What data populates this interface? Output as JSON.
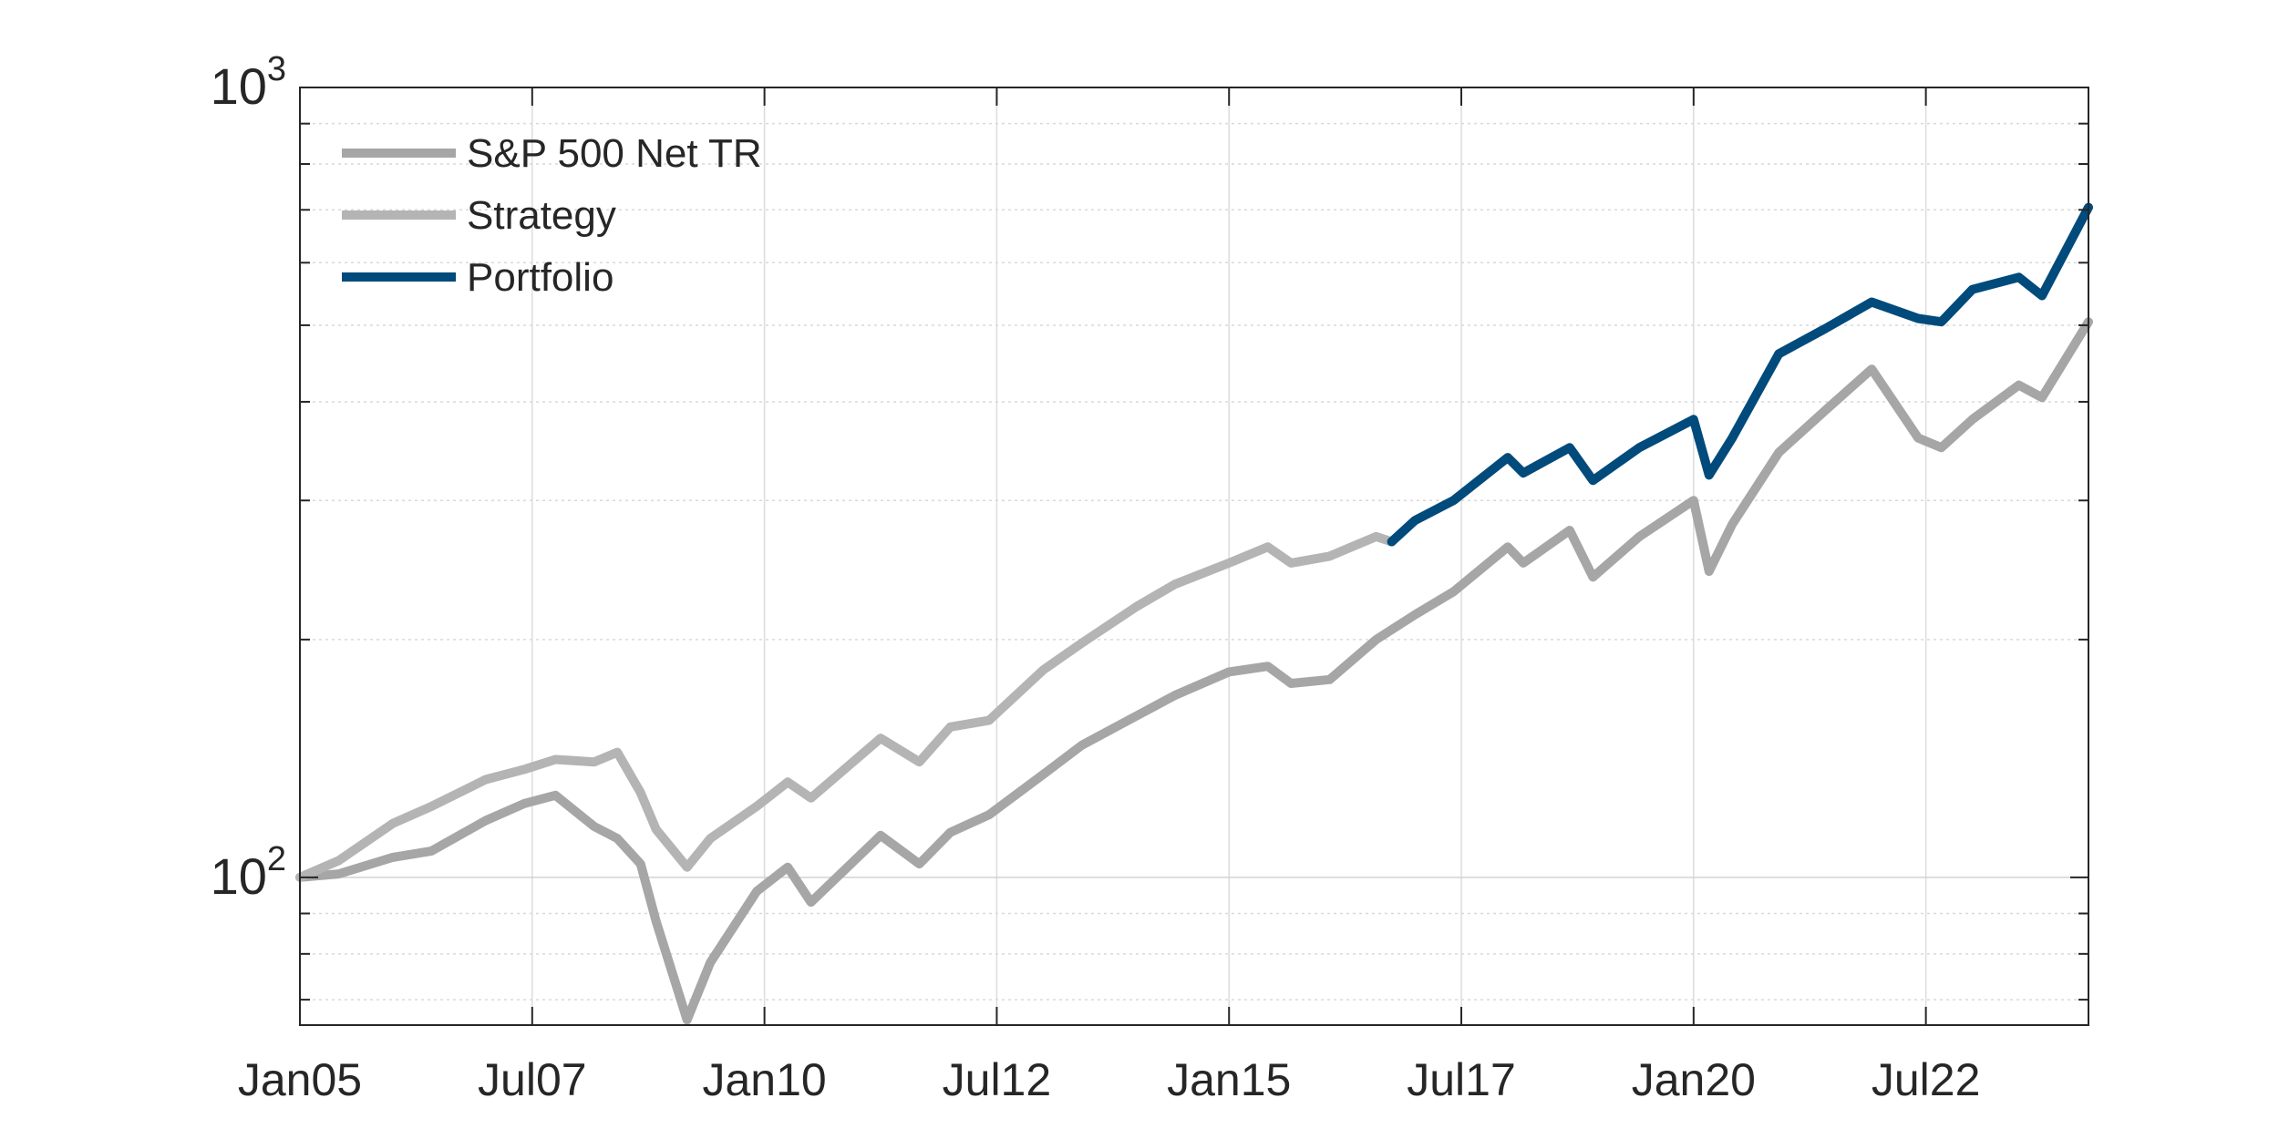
{
  "chart_data": {
    "type": "line",
    "yscale": "log",
    "ylim": [
      65,
      1000
    ],
    "xlim": [
      "2005-01",
      "2024-04"
    ],
    "grid": true,
    "legend_position": "top-left",
    "x_ticks": [
      "Jan05",
      "Jul07",
      "Jan10",
      "Jul12",
      "Jan15",
      "Jul17",
      "Jan20",
      "Jul22"
    ],
    "x_tick_dates": [
      "2005-01",
      "2007-07",
      "2010-01",
      "2012-07",
      "2015-01",
      "2017-07",
      "2020-01",
      "2022-07"
    ],
    "y_ticks": [
      {
        "value": 100,
        "base": "10",
        "exp": "2"
      },
      {
        "value": 1000,
        "base": "10",
        "exp": "3"
      }
    ],
    "series": [
      {
        "name": "S&P 500 Net TR",
        "color": "#a6a6a6",
        "points": [
          [
            "2005-01",
            100
          ],
          [
            "2005-06",
            101
          ],
          [
            "2006-01",
            106
          ],
          [
            "2006-06",
            108
          ],
          [
            "2007-01",
            118
          ],
          [
            "2007-06",
            124
          ],
          [
            "2007-10",
            127
          ],
          [
            "2008-03",
            116
          ],
          [
            "2008-06",
            112
          ],
          [
            "2008-09",
            104
          ],
          [
            "2008-11",
            88
          ],
          [
            "2009-03",
            66
          ],
          [
            "2009-06",
            78
          ],
          [
            "2009-12",
            96
          ],
          [
            "2010-04",
            103
          ],
          [
            "2010-07",
            93
          ],
          [
            "2011-04",
            113
          ],
          [
            "2011-09",
            104
          ],
          [
            "2012-01",
            114
          ],
          [
            "2012-06",
            120
          ],
          [
            "2013-01",
            135
          ],
          [
            "2013-06",
            147
          ],
          [
            "2014-01",
            160
          ],
          [
            "2014-06",
            170
          ],
          [
            "2015-01",
            182
          ],
          [
            "2015-06",
            185
          ],
          [
            "2015-09",
            176
          ],
          [
            "2016-02",
            178
          ],
          [
            "2016-08",
            200
          ],
          [
            "2017-01",
            215
          ],
          [
            "2017-06",
            230
          ],
          [
            "2018-01",
            262
          ],
          [
            "2018-03",
            250
          ],
          [
            "2018-09",
            275
          ],
          [
            "2018-12",
            240
          ],
          [
            "2019-06",
            270
          ],
          [
            "2020-01",
            300
          ],
          [
            "2020-03",
            244
          ],
          [
            "2020-06",
            280
          ],
          [
            "2020-12",
            345
          ],
          [
            "2021-06",
            390
          ],
          [
            "2021-12",
            440
          ],
          [
            "2022-06",
            360
          ],
          [
            "2022-09",
            350
          ],
          [
            "2023-01",
            380
          ],
          [
            "2023-07",
            420
          ],
          [
            "2023-10",
            405
          ],
          [
            "2024-04",
            505
          ]
        ]
      },
      {
        "name": "Strategy",
        "color": "#b4b4b4",
        "points": [
          [
            "2005-01",
            100
          ],
          [
            "2005-06",
            105
          ],
          [
            "2006-01",
            117
          ],
          [
            "2006-06",
            123
          ],
          [
            "2007-01",
            133
          ],
          [
            "2007-06",
            137
          ],
          [
            "2007-10",
            141
          ],
          [
            "2008-03",
            140
          ],
          [
            "2008-06",
            144
          ],
          [
            "2008-09",
            128
          ],
          [
            "2008-11",
            115
          ],
          [
            "2009-03",
            103
          ],
          [
            "2009-06",
            112
          ],
          [
            "2009-12",
            123
          ],
          [
            "2010-04",
            132
          ],
          [
            "2010-07",
            126
          ],
          [
            "2011-04",
            150
          ],
          [
            "2011-09",
            140
          ],
          [
            "2012-01",
            155
          ],
          [
            "2012-06",
            158
          ],
          [
            "2013-01",
            183
          ],
          [
            "2013-06",
            198
          ],
          [
            "2014-01",
            220
          ],
          [
            "2014-06",
            235
          ],
          [
            "2015-01",
            250
          ],
          [
            "2015-06",
            262
          ],
          [
            "2015-09",
            250
          ],
          [
            "2016-02",
            255
          ],
          [
            "2016-08",
            270
          ],
          [
            "2016-10",
            266
          ]
        ]
      },
      {
        "name": "Portfolio",
        "color": "#004b7c",
        "points": [
          [
            "2016-10",
            266
          ],
          [
            "2017-01",
            283
          ],
          [
            "2017-06",
            300
          ],
          [
            "2018-01",
            340
          ],
          [
            "2018-03",
            325
          ],
          [
            "2018-09",
            350
          ],
          [
            "2018-12",
            318
          ],
          [
            "2019-06",
            350
          ],
          [
            "2020-01",
            380
          ],
          [
            "2020-03",
            323
          ],
          [
            "2020-06",
            360
          ],
          [
            "2020-12",
            460
          ],
          [
            "2021-06",
            495
          ],
          [
            "2021-12",
            535
          ],
          [
            "2022-06",
            510
          ],
          [
            "2022-09",
            505
          ],
          [
            "2023-01",
            555
          ],
          [
            "2023-07",
            575
          ],
          [
            "2023-10",
            545
          ],
          [
            "2024-04",
            705
          ]
        ]
      }
    ]
  }
}
